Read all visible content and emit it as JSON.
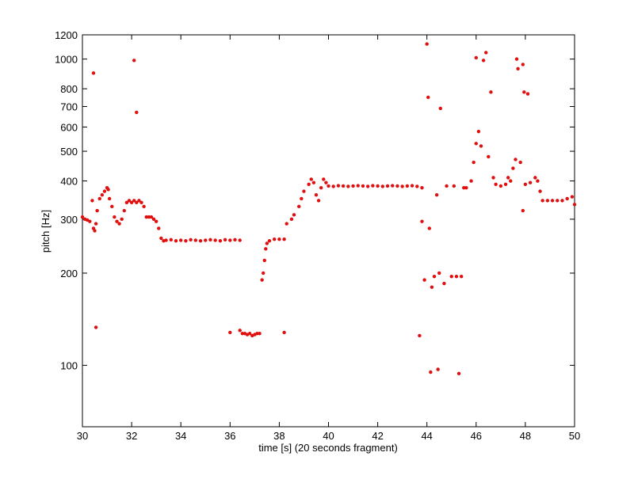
{
  "chart_data": {
    "type": "scatter",
    "log_y": true,
    "color": "#e01010",
    "xlabel": "time [s] (20 seconds fragment)",
    "ylabel": "pitch [Hz]",
    "xlim": [
      30,
      50
    ],
    "xticks": [
      30,
      32,
      34,
      36,
      38,
      40,
      42,
      44,
      46,
      48,
      50
    ],
    "ylim": [
      63,
      1200
    ],
    "yticks": [
      100,
      200,
      300,
      400,
      500,
      600,
      700,
      800,
      1000,
      1200
    ],
    "x": [
      30.0,
      30.1,
      30.2,
      30.3,
      30.4,
      30.45,
      30.5,
      30.55,
      30.6,
      30.7,
      30.8,
      30.9,
      31.0,
      31.05,
      31.1,
      31.2,
      31.3,
      31.4,
      31.5,
      31.6,
      31.7,
      31.8,
      31.9,
      32.0,
      32.1,
      32.2,
      32.3,
      32.4,
      32.5,
      32.6,
      32.7,
      32.8,
      32.9,
      33.0,
      33.1,
      33.2,
      33.3,
      33.4,
      33.6,
      33.8,
      34.0,
      34.2,
      34.4,
      34.6,
      34.8,
      35.0,
      35.2,
      35.4,
      35.6,
      35.8,
      36.0,
      36.2,
      36.4,
      30.45,
      30.55,
      32.1,
      32.2,
      36.0,
      36.4,
      36.5,
      36.6,
      36.7,
      36.8,
      36.9,
      37.0,
      37.1,
      37.2,
      38.2,
      37.3,
      37.35,
      37.4,
      37.45,
      37.5,
      37.6,
      37.8,
      38.0,
      38.2,
      38.3,
      38.5,
      38.6,
      38.8,
      38.9,
      39.0,
      39.2,
      39.3,
      39.4,
      39.5,
      39.6,
      39.7,
      39.8,
      39.9,
      40.0,
      40.2,
      40.4,
      40.6,
      40.8,
      41.0,
      41.2,
      41.4,
      41.6,
      41.8,
      42.0,
      42.2,
      42.4,
      42.6,
      42.8,
      43.0,
      43.2,
      43.4,
      43.6,
      43.8,
      43.7,
      43.8,
      43.9,
      44.0,
      44.05,
      44.1,
      44.15,
      44.2,
      44.3,
      44.4,
      44.45,
      44.5,
      44.55,
      44.7,
      44.8,
      45.0,
      45.1,
      45.2,
      45.3,
      45.4,
      45.5,
      45.6,
      45.8,
      45.9,
      46.0,
      46.0,
      46.1,
      46.2,
      46.3,
      46.4,
      46.5,
      46.6,
      46.7,
      46.8,
      47.0,
      47.2,
      47.3,
      47.4,
      47.5,
      47.6,
      47.65,
      47.7,
      47.8,
      47.9,
      47.9,
      47.95,
      48.1,
      48.0,
      48.2,
      48.4,
      48.5,
      48.6,
      48.7,
      48.9,
      49.1,
      49.3,
      49.5,
      49.7,
      49.9,
      50.0
    ],
    "values": [
      305,
      300,
      298,
      295,
      345,
      280,
      275,
      290,
      320,
      350,
      360,
      370,
      380,
      375,
      350,
      330,
      305,
      295,
      290,
      300,
      320,
      340,
      345,
      340,
      345,
      340,
      345,
      340,
      330,
      305,
      305,
      305,
      300,
      295,
      280,
      260,
      255,
      256,
      257,
      255,
      256,
      255,
      257,
      256,
      255,
      256,
      257,
      256,
      255,
      257,
      256,
      257,
      256,
      900,
      133,
      990,
      670,
      128,
      130,
      127,
      127,
      126,
      127,
      125,
      126,
      127,
      127,
      128,
      190,
      200,
      220,
      240,
      250,
      255,
      258,
      258,
      258,
      290,
      300,
      310,
      330,
      350,
      370,
      390,
      405,
      395,
      360,
      345,
      380,
      405,
      395,
      385,
      384,
      386,
      385,
      384,
      385,
      386,
      385,
      384,
      386,
      385,
      384,
      385,
      386,
      385,
      384,
      385,
      386,
      384,
      380,
      125,
      295,
      190,
      1120,
      750,
      280,
      95,
      180,
      195,
      360,
      97,
      200,
      690,
      185,
      385,
      195,
      385,
      195,
      94,
      195,
      380,
      380,
      400,
      460,
      530,
      1010,
      580,
      520,
      990,
      1050,
      480,
      780,
      410,
      390,
      385,
      390,
      410,
      400,
      440,
      470,
      1000,
      930,
      460,
      960,
      320,
      780,
      770,
      390,
      395,
      410,
      400,
      370,
      345,
      345,
      345,
      345,
      345,
      350,
      355,
      335
    ]
  }
}
